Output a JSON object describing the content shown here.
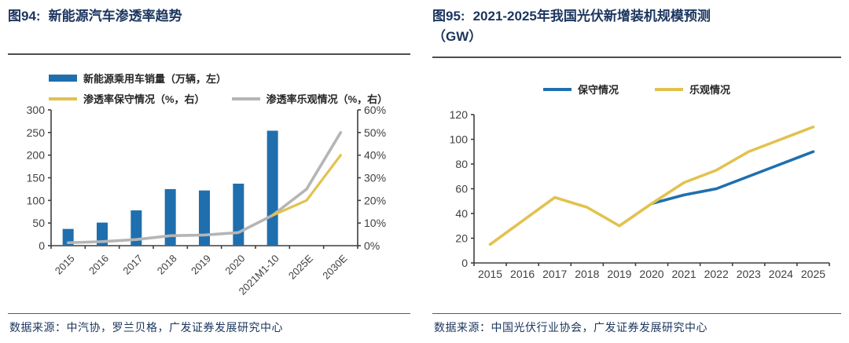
{
  "colors": {
    "bar_blue": "#1f6fae",
    "line_yellow": "#e2c24e",
    "line_gray": "#b5b5b5",
    "line_blue": "#1f6fae",
    "axis": "#3f3f3f",
    "tick_text": "#404040",
    "title_navy": "#1b355e"
  },
  "figures": {
    "left": {
      "label": "图94:",
      "title": "新能源汽车渗透率趋势",
      "source": "数据来源：中汽协，罗兰贝格，广发证券发展研究中心"
    },
    "right": {
      "label": "图95:",
      "title": "2021-2025年我国光伏新增装机规模预测",
      "title_line2": "（GW）",
      "source": "数据来源：中国光伏行业协会，广发证券发展研究中心"
    }
  },
  "chart_data": [
    {
      "id": "nev-penetration",
      "type": "bar",
      "title": "新能源汽车渗透率趋势",
      "categories": [
        "2015",
        "2016",
        "2017",
        "2018",
        "2019",
        "2020",
        "2021M1-10",
        "2025E",
        "2030E"
      ],
      "series": [
        {
          "name": "新能源乘用车销量（万辆，左）",
          "kind": "bar",
          "axis": "left",
          "color": "#1f6fae",
          "values": [
            37,
            51,
            78,
            125,
            122,
            137,
            254,
            null,
            null
          ]
        },
        {
          "name": "渗透率保守情况（%，右）",
          "kind": "line",
          "axis": "right",
          "color": "#e2c24e",
          "values": [
            null,
            null,
            null,
            null,
            null,
            null,
            13.4,
            20,
            40
          ]
        },
        {
          "name": "渗透率乐观情况（%，右）",
          "kind": "line",
          "axis": "right",
          "color": "#b5b5b5",
          "values": [
            1.3,
            1.8,
            2.7,
            4.4,
            4.7,
            5.8,
            13.4,
            25,
            50
          ]
        }
      ],
      "left_axis": {
        "min": 0,
        "max": 300,
        "step": 50,
        "tick_labels": [
          "0",
          "50",
          "100",
          "150",
          "200",
          "250",
          "300"
        ]
      },
      "right_axis": {
        "min": 0,
        "max": 60,
        "step": 10,
        "tick_labels": [
          "0%",
          "10%",
          "20%",
          "30%",
          "40%",
          "50%",
          "60%"
        ]
      },
      "grid": false,
      "legend_position": "top-left"
    },
    {
      "id": "pv-install-forecast",
      "type": "line",
      "title": "2021-2025年我国光伏新增装机规模预测（GW）",
      "categories": [
        "2015",
        "2016",
        "2017",
        "2018",
        "2019",
        "2020",
        "2021",
        "2022",
        "2023",
        "2024",
        "2025"
      ],
      "series": [
        {
          "name": "保守情况",
          "kind": "line",
          "color": "#1f6fae",
          "values": [
            null,
            null,
            null,
            null,
            null,
            48,
            55,
            60,
            70,
            80,
            90
          ]
        },
        {
          "name": "乐观情况",
          "kind": "line",
          "color": "#e2c24e",
          "values": [
            15,
            34,
            53,
            45,
            30,
            48,
            65,
            75,
            90,
            100,
            110
          ]
        }
      ],
      "y_axis": {
        "min": 0,
        "max": 120,
        "step": 20,
        "tick_labels": [
          "0",
          "20",
          "40",
          "60",
          "80",
          "100",
          "120"
        ]
      },
      "grid": false,
      "legend_position": "top-center"
    }
  ]
}
